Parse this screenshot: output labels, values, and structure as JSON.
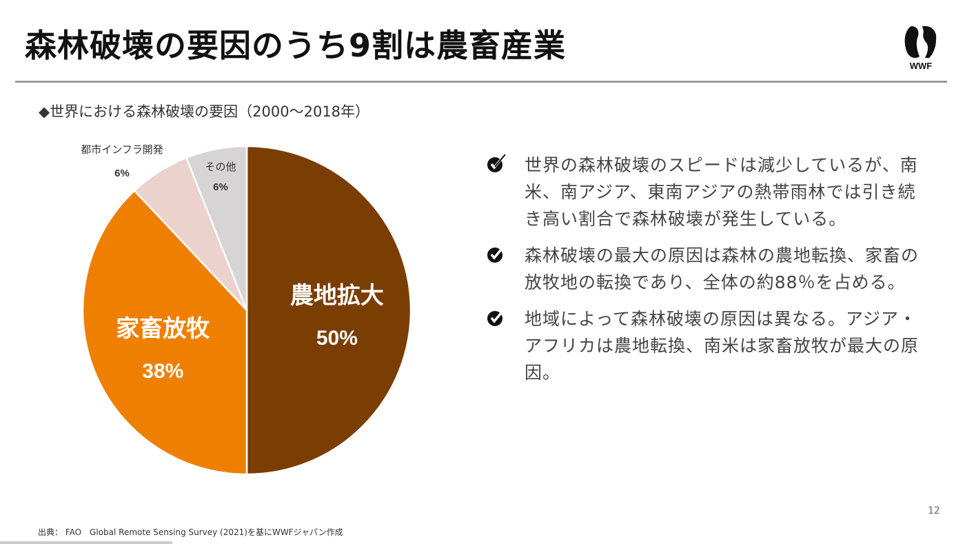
{
  "slide": {
    "title": "森林破壊の要因のうち9割は農畜産業",
    "logo_text": "WWF",
    "subtitle": "◆世界における森林破壊の要因（2000～2018年）",
    "page_number": "12",
    "source": "出典： FAO　Global Remote Sensing Survey (2021)を基にWWFジャパン作成"
  },
  "bullets": [
    {
      "icon": "check-icon",
      "text": "世界の森林破壊のスピードは減少しているが、南米、南アジア、東南アジアの熱帯雨林では引き続き高い割合で森林破壊が発生している。"
    },
    {
      "icon": "check-icon",
      "text": "森林破壊の最大の原因は森林の農地転換、家畜の放牧地の転換であり、全体の約88％を占める。"
    },
    {
      "icon": "check-icon",
      "text": "地域によって森林破壊の原因は異なる。アジア・アフリカは農地転換、南米は家畜放牧が最大の原因。"
    }
  ],
  "chart_data": {
    "type": "pie",
    "title": "世界における森林破壊の要因（2000～2018年）",
    "categories": [
      "農地拡大",
      "家畜放牧",
      "都市インフラ開発",
      "その他"
    ],
    "values": [
      50,
      38,
      6,
      6
    ],
    "labels": [
      "50%",
      "38%",
      "6%",
      "6%"
    ],
    "colors": [
      "#7a3e02",
      "#ee7f00",
      "#ecd2cc",
      "#d6d4d4"
    ],
    "label_colors": [
      "#ffffff",
      "#ffffff",
      "#333333",
      "#333333"
    ]
  }
}
